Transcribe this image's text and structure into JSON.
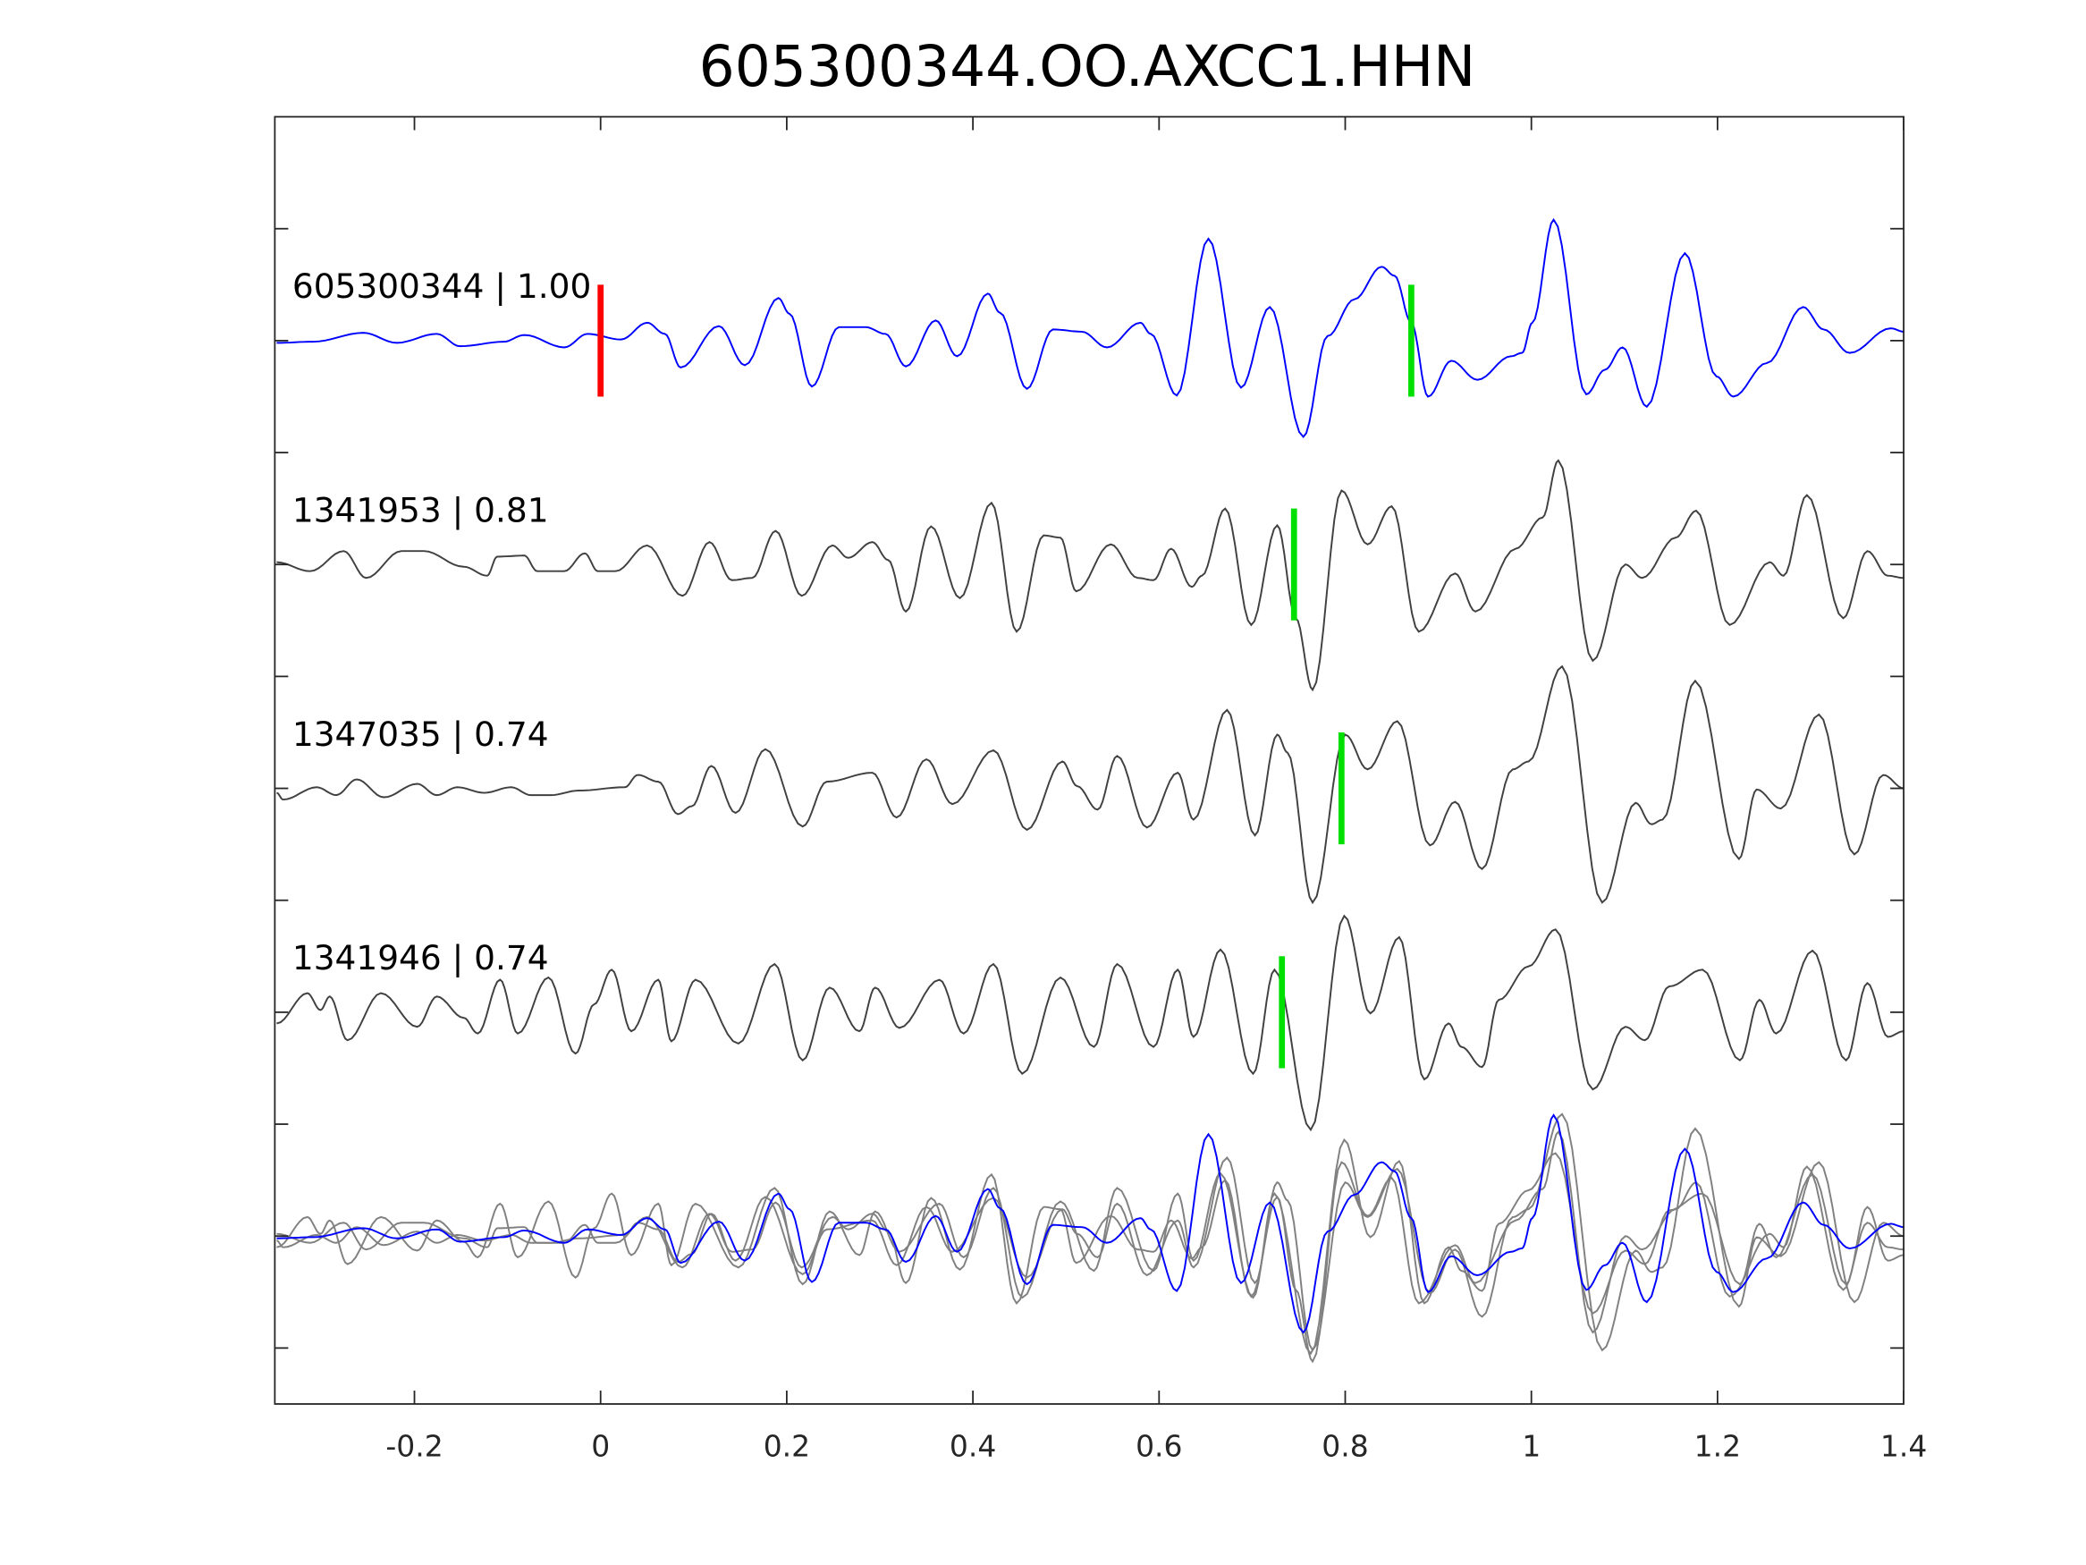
{
  "chart_data": {
    "type": "line",
    "title": "605300344.OO.AXCC1.HHN",
    "xlabel": "",
    "ylabel": "",
    "xlim": [
      -0.35,
      1.4
    ],
    "ylim": [
      -9.5,
      2
    ],
    "xticks": [
      "-0.2",
      "0",
      "0.2",
      "0.4",
      "0.6",
      "0.8",
      "1",
      "1.2",
      "1.4"
    ],
    "xtick_values": [
      -0.2,
      0,
      0.2,
      0.4,
      0.6,
      0.8,
      1,
      1.2,
      1.4
    ],
    "ytick_values": [
      1,
      0,
      -1,
      -2,
      -3,
      -4,
      -5,
      -6,
      -7,
      -8,
      -9
    ],
    "grid": false,
    "series": [
      {
        "name": "605300344",
        "label": "605300344 | 1.00",
        "color": "#0000ff",
        "offset": 0,
        "picks": [
          {
            "t": 0,
            "color": "#ff0000"
          },
          {
            "t": 0.871,
            "color": "#00e000"
          }
        ],
        "points": [
          [
            -0.348,
            -0.02
          ],
          [
            -0.309,
            -0.01
          ],
          [
            -0.255,
            0.07
          ],
          [
            -0.219,
            -0.02
          ],
          [
            -0.176,
            0.06
          ],
          [
            -0.151,
            -0.05
          ],
          [
            -0.104,
            -0.01
          ],
          [
            -0.082,
            0.05
          ],
          [
            -0.039,
            -0.06
          ],
          [
            -0.014,
            0.06
          ],
          [
            0.022,
            0.01
          ],
          [
            0.05,
            0.16
          ],
          [
            0.069,
            0.06
          ],
          [
            0.086,
            -0.24
          ],
          [
            0.127,
            0.13
          ],
          [
            0.155,
            -0.22
          ],
          [
            0.191,
            0.38
          ],
          [
            0.203,
            0.24
          ],
          [
            0.227,
            -0.41
          ],
          [
            0.256,
            0.12
          ],
          [
            0.285,
            0.12
          ],
          [
            0.306,
            0.06
          ],
          [
            0.328,
            -0.23
          ],
          [
            0.36,
            0.18
          ],
          [
            0.383,
            -0.14
          ],
          [
            0.416,
            0.42
          ],
          [
            0.429,
            0.25
          ],
          [
            0.458,
            -0.43
          ],
          [
            0.486,
            0.1
          ],
          [
            0.517,
            0.08
          ],
          [
            0.544,
            -0.06
          ],
          [
            0.58,
            0.16
          ],
          [
            0.591,
            0.06
          ],
          [
            0.619,
            -0.49
          ],
          [
            0.653,
            0.91
          ],
          [
            0.688,
            -0.42
          ],
          [
            0.719,
            0.3
          ],
          [
            0.755,
            -0.86
          ],
          [
            0.781,
            0.04
          ],
          [
            0.81,
            0.37
          ],
          [
            0.839,
            0.66
          ],
          [
            0.853,
            0.58
          ],
          [
            0.871,
            0.16
          ],
          [
            0.889,
            -0.5
          ],
          [
            0.914,
            -0.18
          ],
          [
            0.942,
            -0.35
          ],
          [
            0.978,
            -0.14
          ],
          [
            0.99,
            -0.11
          ],
          [
            1.001,
            0.16
          ],
          [
            1.024,
            1.08
          ],
          [
            1.059,
            -0.48
          ],
          [
            1.079,
            -0.26
          ],
          [
            1.098,
            -0.06
          ],
          [
            1.124,
            -0.59
          ],
          [
            1.165,
            0.78
          ],
          [
            1.199,
            -0.32
          ],
          [
            1.217,
            -0.5
          ],
          [
            1.253,
            -0.2
          ],
          [
            1.292,
            0.3
          ],
          [
            1.314,
            0.1
          ],
          [
            1.342,
            -0.11
          ],
          [
            1.386,
            0.11
          ],
          [
            1.4,
            0.08
          ]
        ]
      },
      {
        "name": "1341953",
        "label": "1341953 | 0.81",
        "color": "#404040",
        "offset": -2,
        "picks": [
          {
            "t": 0.745,
            "color": "#00e000"
          }
        ],
        "points": [
          [
            -0.348,
            0.02
          ],
          [
            -0.312,
            -0.06
          ],
          [
            -0.276,
            0.12
          ],
          [
            -0.252,
            -0.12
          ],
          [
            -0.214,
            0.12
          ],
          [
            -0.19,
            0.12
          ],
          [
            -0.147,
            -0.02
          ],
          [
            -0.122,
            -0.1
          ],
          [
            -0.111,
            0.07
          ],
          [
            -0.082,
            0.08
          ],
          [
            -0.068,
            -0.06
          ],
          [
            -0.039,
            -0.06
          ],
          [
            -0.017,
            0.1
          ],
          [
            -0.003,
            -0.06
          ],
          [
            0.016,
            -0.06
          ],
          [
            0.05,
            0.17
          ],
          [
            0.088,
            -0.28
          ],
          [
            0.117,
            0.2
          ],
          [
            0.141,
            -0.14
          ],
          [
            0.163,
            -0.12
          ],
          [
            0.188,
            0.3
          ],
          [
            0.216,
            -0.28
          ],
          [
            0.249,
            0.17
          ],
          [
            0.266,
            0.06
          ],
          [
            0.292,
            0.2
          ],
          [
            0.309,
            0.04
          ],
          [
            0.328,
            -0.42
          ],
          [
            0.355,
            0.34
          ],
          [
            0.386,
            -0.3
          ],
          [
            0.42,
            0.55
          ],
          [
            0.447,
            -0.6
          ],
          [
            0.476,
            0.26
          ],
          [
            0.494,
            0.24
          ],
          [
            0.511,
            -0.24
          ],
          [
            0.548,
            0.18
          ],
          [
            0.577,
            -0.12
          ],
          [
            0.594,
            -0.14
          ],
          [
            0.613,
            0.14
          ],
          [
            0.635,
            -0.2
          ],
          [
            0.646,
            -0.1
          ],
          [
            0.671,
            0.5
          ],
          [
            0.699,
            -0.54
          ],
          [
            0.727,
            0.35
          ],
          [
            0.747,
            -0.48
          ],
          [
            0.765,
            -1.12
          ],
          [
            0.796,
            0.66
          ],
          [
            0.824,
            0.18
          ],
          [
            0.85,
            0.52
          ],
          [
            0.879,
            -0.6
          ],
          [
            0.918,
            -0.08
          ],
          [
            0.94,
            -0.42
          ],
          [
            0.983,
            0.14
          ],
          [
            1.012,
            0.42
          ],
          [
            1.029,
            0.93
          ],
          [
            1.066,
            -0.86
          ],
          [
            1.101,
            0.0
          ],
          [
            1.119,
            -0.12
          ],
          [
            1.155,
            0.24
          ],
          [
            1.177,
            0.48
          ],
          [
            1.213,
            -0.54
          ],
          [
            1.256,
            0.02
          ],
          [
            1.271,
            -0.1
          ],
          [
            1.296,
            0.62
          ],
          [
            1.335,
            -0.48
          ],
          [
            1.361,
            0.12
          ],
          [
            1.383,
            -0.1
          ],
          [
            1.4,
            -0.12
          ]
        ]
      },
      {
        "name": "1347035",
        "label": "1347035 | 0.74",
        "color": "#404040",
        "offset": -4,
        "picks": [
          {
            "t": 0.796,
            "color": "#00e000"
          }
        ],
        "points": [
          [
            -0.348,
            -0.04
          ],
          [
            -0.341,
            -0.1
          ],
          [
            -0.305,
            0.01
          ],
          [
            -0.284,
            -0.06
          ],
          [
            -0.262,
            0.08
          ],
          [
            -0.233,
            -0.08
          ],
          [
            -0.197,
            0.04
          ],
          [
            -0.176,
            -0.06
          ],
          [
            -0.154,
            0.01
          ],
          [
            -0.125,
            -0.04
          ],
          [
            -0.096,
            0.01
          ],
          [
            -0.075,
            -0.06
          ],
          [
            -0.053,
            -0.06
          ],
          [
            -0.024,
            -0.02
          ],
          [
            0.026,
            0.01
          ],
          [
            0.04,
            0.12
          ],
          [
            0.062,
            0.06
          ],
          [
            0.083,
            -0.23
          ],
          [
            0.098,
            -0.16
          ],
          [
            0.119,
            0.2
          ],
          [
            0.145,
            -0.22
          ],
          [
            0.177,
            0.35
          ],
          [
            0.217,
            -0.34
          ],
          [
            0.243,
            0.06
          ],
          [
            0.292,
            0.14
          ],
          [
            0.318,
            -0.26
          ],
          [
            0.35,
            0.26
          ],
          [
            0.378,
            -0.14
          ],
          [
            0.422,
            0.34
          ],
          [
            0.458,
            -0.37
          ],
          [
            0.496,
            0.24
          ],
          [
            0.512,
            0.02
          ],
          [
            0.534,
            -0.19
          ],
          [
            0.555,
            0.29
          ],
          [
            0.587,
            -0.35
          ],
          [
            0.62,
            0.14
          ],
          [
            0.637,
            -0.28
          ],
          [
            0.673,
            0.7
          ],
          [
            0.703,
            -0.42
          ],
          [
            0.727,
            0.48
          ],
          [
            0.738,
            0.32
          ],
          [
            0.765,
            -1.02
          ],
          [
            0.8,
            0.48
          ],
          [
            0.824,
            0.17
          ],
          [
            0.856,
            0.6
          ],
          [
            0.891,
            -0.51
          ],
          [
            0.918,
            -0.12
          ],
          [
            0.947,
            -0.72
          ],
          [
            0.98,
            0.17
          ],
          [
            0.997,
            0.24
          ],
          [
            1.033,
            1.09
          ],
          [
            1.076,
            -1.02
          ],
          [
            1.112,
            -0.13
          ],
          [
            1.129,
            -0.32
          ],
          [
            1.141,
            -0.28
          ],
          [
            1.176,
            0.96
          ],
          [
            1.223,
            -0.63
          ],
          [
            1.242,
            -0.01
          ],
          [
            1.268,
            -0.18
          ],
          [
            1.309,
            0.66
          ],
          [
            1.347,
            -0.59
          ],
          [
            1.378,
            0.12
          ],
          [
            1.4,
            0.0
          ]
        ]
      },
      {
        "name": "1341946",
        "label": "1341946 | 0.74",
        "color": "#404040",
        "offset": -6,
        "picks": [
          {
            "t": 0.732,
            "color": "#00e000"
          }
        ],
        "points": [
          [
            -0.348,
            -0.1
          ],
          [
            -0.315,
            0.17
          ],
          [
            -0.301,
            0.02
          ],
          [
            -0.291,
            0.14
          ],
          [
            -0.272,
            -0.25
          ],
          [
            -0.236,
            0.17
          ],
          [
            -0.197,
            -0.13
          ],
          [
            -0.176,
            0.14
          ],
          [
            -0.147,
            -0.05
          ],
          [
            -0.132,
            -0.19
          ],
          [
            -0.108,
            0.29
          ],
          [
            -0.089,
            -0.19
          ],
          [
            -0.056,
            0.31
          ],
          [
            -0.027,
            -0.37
          ],
          [
            -0.007,
            0.07
          ],
          [
            0.012,
            0.38
          ],
          [
            0.033,
            -0.17
          ],
          [
            0.062,
            0.29
          ],
          [
            0.076,
            -0.26
          ],
          [
            0.102,
            0.29
          ],
          [
            0.148,
            -0.28
          ],
          [
            0.187,
            0.43
          ],
          [
            0.217,
            -0.43
          ],
          [
            0.246,
            0.22
          ],
          [
            0.278,
            -0.17
          ],
          [
            0.295,
            0.22
          ],
          [
            0.321,
            -0.14
          ],
          [
            0.364,
            0.29
          ],
          [
            0.39,
            -0.19
          ],
          [
            0.422,
            0.43
          ],
          [
            0.453,
            -0.55
          ],
          [
            0.494,
            0.31
          ],
          [
            0.53,
            -0.31
          ],
          [
            0.555,
            0.43
          ],
          [
            0.594,
            -0.31
          ],
          [
            0.62,
            0.38
          ],
          [
            0.637,
            -0.22
          ],
          [
            0.666,
            0.56
          ],
          [
            0.701,
            -0.55
          ],
          [
            0.724,
            0.38
          ],
          [
            0.763,
            -1.05
          ],
          [
            0.799,
            0.86
          ],
          [
            0.827,
            -0.01
          ],
          [
            0.858,
            0.67
          ],
          [
            0.885,
            -0.6
          ],
          [
            0.911,
            -0.1
          ],
          [
            0.925,
            -0.31
          ],
          [
            0.947,
            -0.49
          ],
          [
            0.965,
            0.11
          ],
          [
            0.997,
            0.41
          ],
          [
            1.026,
            0.74
          ],
          [
            1.066,
            -0.69
          ],
          [
            1.101,
            -0.13
          ],
          [
            1.122,
            -0.25
          ],
          [
            1.148,
            0.23
          ],
          [
            1.184,
            0.38
          ],
          [
            1.224,
            -0.43
          ],
          [
            1.245,
            0.11
          ],
          [
            1.263,
            -0.19
          ],
          [
            1.302,
            0.55
          ],
          [
            1.338,
            -0.43
          ],
          [
            1.361,
            0.26
          ],
          [
            1.383,
            -0.22
          ],
          [
            1.4,
            -0.17
          ]
        ]
      }
    ],
    "overlay": {
      "offset": -8,
      "gray_color": "#808080",
      "reference_color": "#0000ff"
    }
  }
}
